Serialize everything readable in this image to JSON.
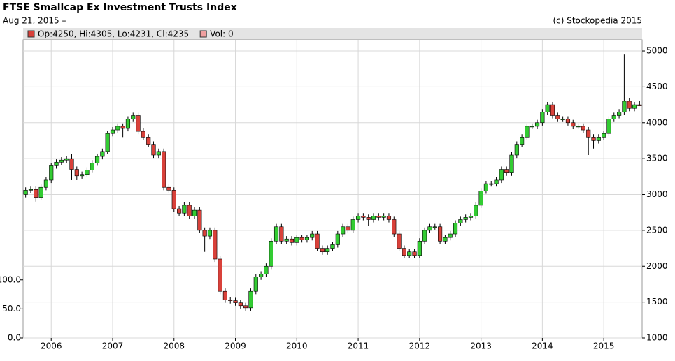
{
  "chart_data": {
    "type": "candlestick",
    "title": "FTSE Smallcap Ex Investment Trusts Index",
    "subtitle": "Aug 21, 2015 –",
    "credit": "(c) Stockopedia 2015",
    "legend": [
      "Op:4250, Hi:4305, Lo:4231, Cl:4235",
      "Vol: 0"
    ],
    "legend_colors": [
      "#d9413a",
      "#f0a0a0"
    ],
    "up_color": "#33cc33",
    "down_color": "#d9413a",
    "grid": true,
    "categories": [
      null,
      null,
      null,
      null,
      null,
      "2006",
      null,
      null,
      null,
      null,
      null,
      null,
      null,
      null,
      null,
      null,
      null,
      "2007",
      null,
      null,
      null,
      null,
      null,
      null,
      null,
      null,
      null,
      null,
      null,
      "2008",
      null,
      null,
      null,
      null,
      null,
      null,
      null,
      null,
      null,
      null,
      null,
      "2009",
      null,
      null,
      null,
      null,
      null,
      null,
      null,
      null,
      null,
      null,
      null,
      "2010",
      null,
      null,
      null,
      null,
      null,
      null,
      null,
      null,
      null,
      null,
      null,
      "2011",
      null,
      null,
      null,
      null,
      null,
      null,
      null,
      null,
      null,
      null,
      null,
      "2012",
      null,
      null,
      null,
      null,
      null,
      null,
      null,
      null,
      null,
      null,
      null,
      "2013",
      null,
      null,
      null,
      null,
      null,
      null,
      null,
      null,
      null,
      null,
      null,
      "2014",
      null,
      null,
      null,
      null,
      null,
      null,
      null,
      null,
      null,
      null,
      null,
      "2015",
      null,
      null,
      null,
      null,
      null,
      null,
      null
    ],
    "open": [
      3000,
      3060,
      3070,
      2960,
      3100,
      3200,
      3400,
      3450,
      3480,
      3500,
      3350,
      3260,
      3280,
      3340,
      3440,
      3530,
      3600,
      3850,
      3900,
      3950,
      3920,
      4050,
      4100,
      3880,
      3800,
      3700,
      3550,
      3600,
      3100,
      3060,
      2800,
      2740,
      2850,
      2700,
      2780,
      2500,
      2420,
      2500,
      2100,
      1650,
      1530,
      1520,
      1490,
      1450,
      1420,
      1650,
      1850,
      1890,
      2000,
      2350,
      2550,
      2350,
      2380,
      2330,
      2400,
      2370,
      2400,
      2450,
      2250,
      2200,
      2250,
      2300,
      2450,
      2550,
      2500,
      2650,
      2700,
      2680,
      2650,
      2700,
      2680,
      2700,
      2650,
      2450,
      2250,
      2150,
      2200,
      2150,
      2350,
      2500,
      2550,
      2550,
      2350,
      2400,
      2450,
      2600,
      2650,
      2680,
      2700,
      2850,
      3050,
      3150,
      3150,
      3200,
      3350,
      3300,
      3550,
      3700,
      3800,
      3950,
      3950,
      4000,
      4150,
      4250,
      4100,
      4050,
      4050,
      4000,
      3950,
      3950,
      3900,
      3800,
      3750,
      3800,
      3850,
      4050,
      4100,
      4150,
      4300,
      4200,
      4250
    ],
    "high": [
      3100,
      3110,
      3110,
      3140,
      3240,
      3440,
      3490,
      3520,
      3540,
      3560,
      3390,
      3320,
      3380,
      3480,
      3570,
      3640,
      3890,
      3940,
      3990,
      3990,
      4090,
      4140,
      4140,
      3920,
      3840,
      3740,
      3640,
      3640,
      3140,
      3100,
      2840,
      2890,
      2890,
      2820,
      2820,
      2540,
      2540,
      2540,
      2140,
      1690,
      1570,
      1560,
      1530,
      1490,
      1690,
      1890,
      1930,
      2040,
      2390,
      2590,
      2590,
      2420,
      2420,
      2440,
      2440,
      2440,
      2490,
      2490,
      2290,
      2290,
      2340,
      2490,
      2590,
      2590,
      2690,
      2740,
      2740,
      2720,
      2740,
      2740,
      2740,
      2740,
      2690,
      2490,
      2290,
      2240,
      2240,
      2390,
      2540,
      2590,
      2590,
      2590,
      2440,
      2490,
      2640,
      2690,
      2720,
      2740,
      2890,
      3090,
      3190,
      3190,
      3240,
      3390,
      3390,
      3590,
      3740,
      3840,
      3990,
      3990,
      4040,
      4190,
      4290,
      4290,
      4140,
      4090,
      4090,
      4040,
      3990,
      3990,
      3940,
      3840,
      3840,
      3890,
      4090,
      4140,
      4190,
      4950,
      4340,
      4290,
      4305
    ],
    "low": [
      2960,
      3020,
      2900,
      2920,
      3060,
      3160,
      3360,
      3410,
      3440,
      3200,
      3200,
      3220,
      3240,
      3300,
      3400,
      3490,
      3560,
      3810,
      3860,
      3800,
      3880,
      4010,
      3840,
      3760,
      3660,
      3510,
      3510,
      3060,
      3020,
      2760,
      2700,
      2700,
      2660,
      2660,
      2460,
      2200,
      2380,
      2060,
      1610,
      1490,
      1480,
      1450,
      1410,
      1380,
      1380,
      1610,
      1810,
      1850,
      1960,
      2310,
      2310,
      2310,
      2290,
      2290,
      2330,
      2330,
      2360,
      2210,
      2160,
      2160,
      2210,
      2260,
      2410,
      2460,
      2460,
      2610,
      2640,
      2560,
      2610,
      2640,
      2640,
      2610,
      2410,
      2210,
      2110,
      2110,
      2110,
      2110,
      2310,
      2460,
      2510,
      2310,
      2310,
      2360,
      2410,
      2560,
      2610,
      2640,
      2660,
      2810,
      3010,
      3110,
      3110,
      3160,
      3260,
      3260,
      3510,
      3660,
      3760,
      3910,
      3910,
      3960,
      4110,
      4060,
      4010,
      4010,
      3960,
      3910,
      3910,
      3860,
      3550,
      3640,
      3710,
      3760,
      3810,
      4010,
      4060,
      4110,
      4160,
      4160,
      4231
    ],
    "close": [
      3060,
      3070,
      2960,
      3100,
      3200,
      3400,
      3450,
      3480,
      3500,
      3350,
      3260,
      3280,
      3340,
      3440,
      3530,
      3600,
      3850,
      3900,
      3950,
      3920,
      4050,
      4100,
      3880,
      3800,
      3700,
      3550,
      3600,
      3100,
      3060,
      2800,
      2740,
      2850,
      2700,
      2780,
      2500,
      2420,
      2500,
      2100,
      1650,
      1530,
      1520,
      1490,
      1450,
      1420,
      1650,
      1850,
      1890,
      2000,
      2350,
      2550,
      2350,
      2380,
      2330,
      2400,
      2370,
      2400,
      2450,
      2250,
      2200,
      2250,
      2300,
      2450,
      2550,
      2500,
      2650,
      2700,
      2680,
      2650,
      2700,
      2680,
      2700,
      2650,
      2450,
      2250,
      2150,
      2200,
      2150,
      2350,
      2500,
      2550,
      2550,
      2350,
      2400,
      2450,
      2600,
      2650,
      2680,
      2700,
      2850,
      3050,
      3150,
      3150,
      3200,
      3350,
      3300,
      3550,
      3700,
      3800,
      3950,
      3950,
      4000,
      4150,
      4250,
      4100,
      4050,
      4050,
      4000,
      3950,
      3950,
      3900,
      3800,
      3750,
      3800,
      3850,
      4050,
      4100,
      4150,
      4300,
      4200,
      4250,
      4235
    ],
    "ylim": [
      0,
      513
    ],
    "yticks": [
      {
        "value": 0,
        "label": "0.0"
      },
      {
        "value": 50,
        "label": "50.0"
      },
      {
        "value": 100,
        "label": "100.0"
      }
    ],
    "y2lim": [
      1000,
      5156
    ],
    "y2ticks": [
      1000,
      1500,
      2000,
      2500,
      3000,
      3500,
      4000,
      4500,
      5000
    ]
  }
}
